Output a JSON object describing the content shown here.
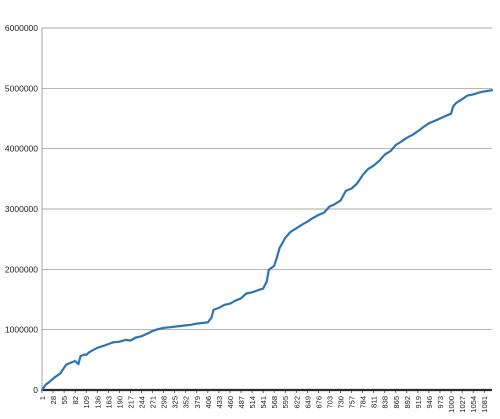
{
  "chart_data": {
    "type": "line",
    "title": "",
    "xlabel": "",
    "ylabel": "",
    "ylim": [
      0,
      6000000
    ],
    "y_ticks": [
      "0",
      "1000000",
      "2000000",
      "3000000",
      "4000000",
      "5000000",
      "6000000"
    ],
    "x_ticks": [
      "1",
      "28",
      "55",
      "82",
      "109",
      "136",
      "163",
      "190",
      "217",
      "244",
      "271",
      "298",
      "325",
      "352",
      "379",
      "406",
      "433",
      "460",
      "487",
      "514",
      "541",
      "568",
      "595",
      "622",
      "649",
      "676",
      "703",
      "730",
      "757",
      "784",
      "811",
      "838",
      "865",
      "892",
      "919",
      "946",
      "973",
      "1000",
      "1027",
      "1054",
      "1081"
    ],
    "x_range": [
      1,
      1100
    ],
    "grid": "horizontal",
    "legend": "none",
    "series": [
      {
        "color": "#2e74b5",
        "x": [
          1,
          10,
          20,
          30,
          45,
          60,
          70,
          82,
          90,
          95,
          105,
          109,
          115,
          125,
          136,
          150,
          163,
          175,
          190,
          205,
          217,
          230,
          244,
          260,
          271,
          285,
          298,
          312,
          325,
          340,
          352,
          365,
          379,
          392,
          406,
          415,
          420,
          433,
          446,
          460,
          473,
          487,
          500,
          514,
          527,
          541,
          550,
          555,
          568,
          575,
          581,
          595,
          608,
          622,
          636,
          649,
          662,
          676,
          690,
          703,
          716,
          730,
          743,
          757,
          770,
          784,
          797,
          811,
          825,
          838,
          852,
          865,
          879,
          892,
          906,
          919,
          933,
          946,
          960,
          973,
          986,
          1000,
          1005,
          1013,
          1027,
          1040,
          1054,
          1068,
          1081,
          1094,
          1100
        ],
        "y": [
          0,
          90000,
          140000,
          200000,
          270000,
          420000,
          450000,
          480000,
          430000,
          560000,
          590000,
          580000,
          620000,
          660000,
          700000,
          730000,
          760000,
          790000,
          800000,
          830000,
          820000,
          870000,
          890000,
          940000,
          980000,
          1010000,
          1030000,
          1040000,
          1050000,
          1060000,
          1070000,
          1080000,
          1100000,
          1110000,
          1120000,
          1200000,
          1330000,
          1360000,
          1410000,
          1430000,
          1480000,
          1520000,
          1600000,
          1620000,
          1650000,
          1680000,
          1800000,
          1990000,
          2060000,
          2200000,
          2350000,
          2520000,
          2620000,
          2680000,
          2740000,
          2790000,
          2850000,
          2900000,
          2940000,
          3040000,
          3080000,
          3140000,
          3300000,
          3340000,
          3420000,
          3560000,
          3660000,
          3720000,
          3800000,
          3900000,
          3960000,
          4060000,
          4120000,
          4180000,
          4230000,
          4290000,
          4360000,
          4420000,
          4460000,
          4500000,
          4540000,
          4580000,
          4700000,
          4760000,
          4820000,
          4880000,
          4900000,
          4930000,
          4950000,
          4960000,
          4970000
        ]
      }
    ]
  }
}
